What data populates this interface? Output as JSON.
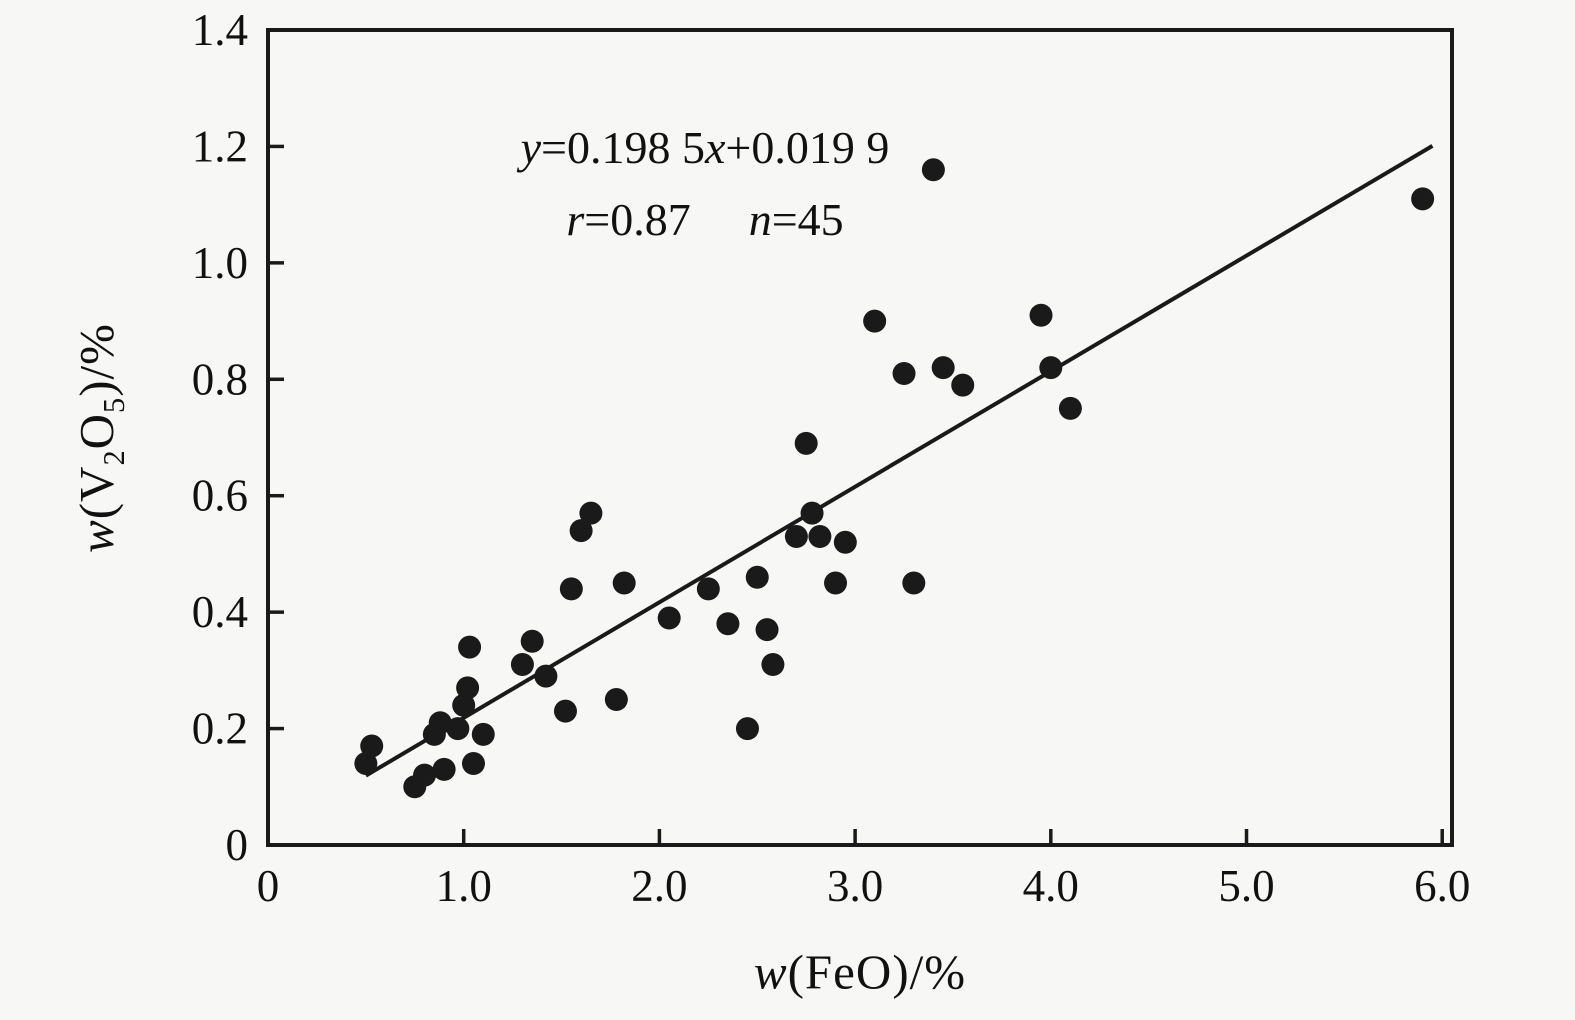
{
  "chart_data": {
    "type": "scatter",
    "title": "",
    "xlabel": {
      "var": "w",
      "rest": "(FeO)/%"
    },
    "ylabel": {
      "var": "w",
      "p1": "(V",
      "s1": "2",
      "p2": "O",
      "s2": "5",
      "p3": ")/%"
    },
    "xlim": [
      0,
      6.05
    ],
    "ylim": [
      0,
      1.4
    ],
    "x_ticks": [
      0,
      1.0,
      2.0,
      3.0,
      4.0,
      5.0,
      6.0
    ],
    "x_tick_labels": [
      "0",
      "1.0",
      "2.0",
      "3.0",
      "4.0",
      "5.0",
      "6.0"
    ],
    "y_ticks": [
      0,
      0.2,
      0.4,
      0.6,
      0.8,
      1.0,
      1.2,
      1.4
    ],
    "y_tick_labels": [
      "0",
      "0.2",
      "0.4",
      "0.6",
      "0.8",
      "1.0",
      "1.2",
      "1.4"
    ],
    "grid": false,
    "point_color": "#1a1a1a",
    "line_color": "#1a1a1a",
    "regression": {
      "slope": 0.1985,
      "intercept": 0.0199,
      "x_start": 0.5,
      "x_end": 5.95
    },
    "annotation": {
      "line1": [
        {
          "t": "y",
          "i": true
        },
        {
          "t": "=0.198 5",
          "i": false
        },
        {
          "t": "x",
          "i": true
        },
        {
          "t": "+0.019 9",
          "i": false
        }
      ],
      "line2": [
        {
          "t": "r",
          "i": true
        },
        {
          "t": "=0.87",
          "i": false
        },
        {
          "t": "n",
          "i": true
        },
        {
          "t": "=45",
          "i": false
        }
      ]
    },
    "points": [
      [
        0.5,
        0.14
      ],
      [
        0.53,
        0.17
      ],
      [
        0.75,
        0.1
      ],
      [
        0.8,
        0.12
      ],
      [
        0.85,
        0.19
      ],
      [
        0.88,
        0.21
      ],
      [
        0.9,
        0.13
      ],
      [
        0.97,
        0.2
      ],
      [
        1.0,
        0.24
      ],
      [
        1.02,
        0.27
      ],
      [
        1.03,
        0.34
      ],
      [
        1.05,
        0.14
      ],
      [
        1.1,
        0.19
      ],
      [
        1.3,
        0.31
      ],
      [
        1.35,
        0.35
      ],
      [
        1.42,
        0.29
      ],
      [
        1.52,
        0.23
      ],
      [
        1.55,
        0.44
      ],
      [
        1.6,
        0.54
      ],
      [
        1.65,
        0.57
      ],
      [
        1.78,
        0.25
      ],
      [
        1.82,
        0.45
      ],
      [
        2.05,
        0.39
      ],
      [
        2.25,
        0.44
      ],
      [
        2.35,
        0.38
      ],
      [
        2.45,
        0.2
      ],
      [
        2.5,
        0.46
      ],
      [
        2.55,
        0.37
      ],
      [
        2.58,
        0.31
      ],
      [
        2.7,
        0.53
      ],
      [
        2.75,
        0.69
      ],
      [
        2.78,
        0.57
      ],
      [
        2.82,
        0.53
      ],
      [
        2.9,
        0.45
      ],
      [
        2.95,
        0.52
      ],
      [
        3.1,
        0.9
      ],
      [
        3.25,
        0.81
      ],
      [
        3.3,
        0.45
      ],
      [
        3.4,
        1.16
      ],
      [
        3.45,
        0.82
      ],
      [
        3.55,
        0.79
      ],
      [
        3.95,
        0.91
      ],
      [
        4.0,
        0.82
      ],
      [
        4.1,
        0.75
      ],
      [
        5.9,
        1.11
      ]
    ]
  }
}
